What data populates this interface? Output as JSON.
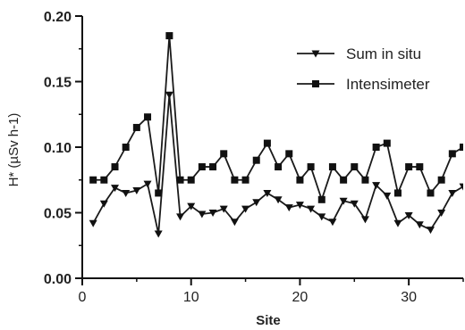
{
  "chart_data": {
    "type": "line",
    "title": "",
    "xlabel": "Site",
    "ylabel": "H* (µSv h-1)",
    "xlim": [
      0,
      35
    ],
    "ylim": [
      0.0,
      0.2
    ],
    "x_ticks": [
      0,
      10,
      20,
      30
    ],
    "y_ticks": [
      0.0,
      0.05,
      0.1,
      0.15,
      0.2
    ],
    "x_tick_labels": [
      "0",
      "10",
      "20",
      "30"
    ],
    "y_tick_labels": [
      "0.00",
      "0.05",
      "0.10",
      "0.15",
      "0.20"
    ],
    "grid": false,
    "legend_position": "top-right",
    "x": [
      1,
      2,
      3,
      4,
      5,
      6,
      7,
      8,
      9,
      10,
      11,
      12,
      13,
      14,
      15,
      16,
      17,
      18,
      19,
      20,
      21,
      22,
      23,
      24,
      25,
      26,
      27,
      28,
      29,
      30,
      31,
      32,
      33,
      34,
      35
    ],
    "series": [
      {
        "name": "Sum in situ",
        "marker": "triangle-down",
        "color": "#1a1a1a",
        "values": [
          0.042,
          0.057,
          0.069,
          0.065,
          0.067,
          0.072,
          0.034,
          0.14,
          0.047,
          0.055,
          0.049,
          0.05,
          0.053,
          0.043,
          0.053,
          0.058,
          0.065,
          0.06,
          0.054,
          0.056,
          0.053,
          0.047,
          0.043,
          0.059,
          0.057,
          0.045,
          0.071,
          0.063,
          0.042,
          0.048,
          0.041,
          0.037,
          0.05,
          0.065,
          0.07
        ]
      },
      {
        "name": "Intensimeter",
        "marker": "square",
        "color": "#1a1a1a",
        "values": [
          0.075,
          0.075,
          0.085,
          0.1,
          0.115,
          0.123,
          0.065,
          0.185,
          0.075,
          0.075,
          0.085,
          0.085,
          0.095,
          0.075,
          0.075,
          0.09,
          0.103,
          0.085,
          0.095,
          0.075,
          0.085,
          0.06,
          0.085,
          0.075,
          0.085,
          0.075,
          0.1,
          0.103,
          0.065,
          0.085,
          0.085,
          0.065,
          0.075,
          0.095,
          0.1
        ]
      }
    ]
  }
}
